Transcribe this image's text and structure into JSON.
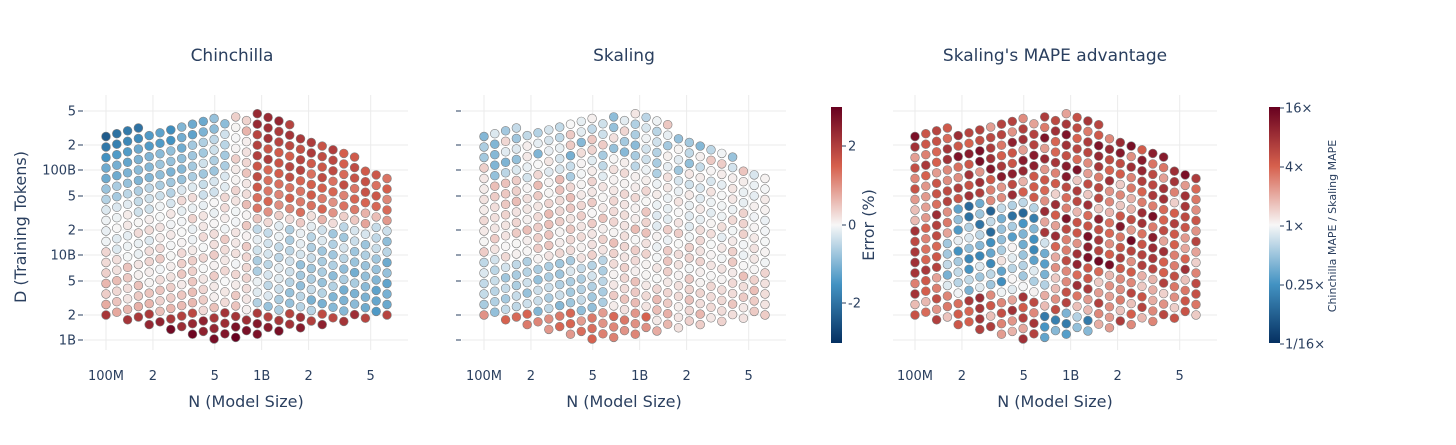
{
  "chart_data": [
    {
      "type": "scatter",
      "title": "Chinchilla",
      "xlabel": "N (Model Size)",
      "ylabel": "D (Training Tokens)",
      "x_scale": "log",
      "y_scale": "log",
      "x_ticks": [
        "100M",
        "2",
        "5",
        "1B",
        "2",
        "5"
      ],
      "y_ticks": [
        "5",
        "2",
        "100B",
        "5",
        "2",
        "10B",
        "5",
        "2",
        "1B"
      ],
      "pattern": "chinchilla",
      "description_colors": "error % per (N, D) grid point; negative (blue) at large N and at small N with large D, positive (red) elsewhere"
    },
    {
      "type": "scatter",
      "title": "Skaling",
      "xlabel": "N (Model Size)",
      "ylabel": "",
      "x_scale": "log",
      "y_scale": "log",
      "x_ticks": [
        "100M",
        "2",
        "5",
        "1B",
        "2",
        "5"
      ],
      "pattern": "skaling"
    },
    {
      "type": "scatter",
      "title": "Skaling's MAPE advantage",
      "xlabel": "N (Model Size)",
      "ylabel": "",
      "x_scale": "log",
      "y_scale": "log",
      "x_ticks": [
        "100M",
        "2",
        "5",
        "1B",
        "2",
        "5"
      ],
      "y_ticks": [
        "",
        "",
        "",
        "",
        "",
        "",
        "",
        "",
        ""
      ],
      "pattern": "advantage"
    }
  ],
  "colorbars": [
    {
      "title": "Error (%)",
      "ticks": [
        "2",
        "0",
        "-2"
      ],
      "range": [
        -3,
        3
      ]
    },
    {
      "title": "Chinchilla MAPE / Skaling MAPE",
      "ticks": [
        "16×",
        "4×",
        "1×",
        "0.25×",
        "1/16×"
      ],
      "range_log2": [
        -4,
        4
      ]
    }
  ],
  "colors": {
    "neg_dark": "#053061",
    "neg_mid": "#4393c3",
    "neutral": "#f7f7f7",
    "pos_mid": "#d6604d",
    "pos_dark": "#67001f",
    "grid": "#ebebeb",
    "text": "#2a3f5f"
  }
}
